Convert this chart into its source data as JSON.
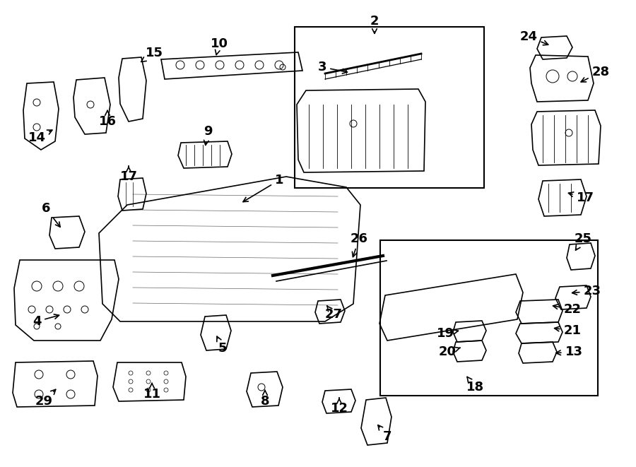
{
  "bg_color": "#ffffff",
  "line_color": "#000000",
  "text_color": "#000000",
  "label_fontsize": 13,
  "label_data": [
    [
      "1",
      395,
      255,
      340,
      288
    ],
    [
      "2",
      530,
      30,
      530,
      52
    ],
    [
      "3",
      456,
      95,
      496,
      103
    ],
    [
      "4",
      52,
      455,
      88,
      445
    ],
    [
      "5",
      315,
      493,
      305,
      472
    ],
    [
      "6",
      65,
      295,
      88,
      325
    ],
    [
      "7",
      548,
      618,
      532,
      598
    ],
    [
      "8",
      375,
      568,
      375,
      548
    ],
    [
      "9",
      294,
      186,
      290,
      210
    ],
    [
      "10",
      310,
      62,
      305,
      82
    ],
    [
      "11",
      215,
      558,
      215,
      538
    ],
    [
      "12",
      480,
      578,
      480,
      560
    ],
    [
      "13",
      812,
      498,
      782,
      500
    ],
    [
      "14",
      52,
      195,
      78,
      182
    ],
    [
      "15",
      218,
      75,
      196,
      90
    ],
    [
      "16",
      152,
      172,
      152,
      152
    ],
    [
      "17",
      182,
      250,
      182,
      232
    ],
    [
      "17",
      828,
      280,
      800,
      272
    ],
    [
      "18",
      672,
      548,
      660,
      532
    ],
    [
      "19",
      630,
      472,
      650,
      468
    ],
    [
      "20",
      633,
      498,
      652,
      492
    ],
    [
      "21",
      810,
      468,
      780,
      464
    ],
    [
      "22",
      810,
      438,
      778,
      432
    ],
    [
      "23",
      838,
      412,
      805,
      415
    ],
    [
      "24",
      748,
      52,
      780,
      65
    ],
    [
      "25",
      825,
      338,
      812,
      358
    ],
    [
      "26",
      508,
      338,
      498,
      368
    ],
    [
      "27",
      472,
      445,
      462,
      432
    ],
    [
      "28",
      850,
      102,
      818,
      118
    ],
    [
      "29",
      62,
      568,
      82,
      548
    ]
  ]
}
